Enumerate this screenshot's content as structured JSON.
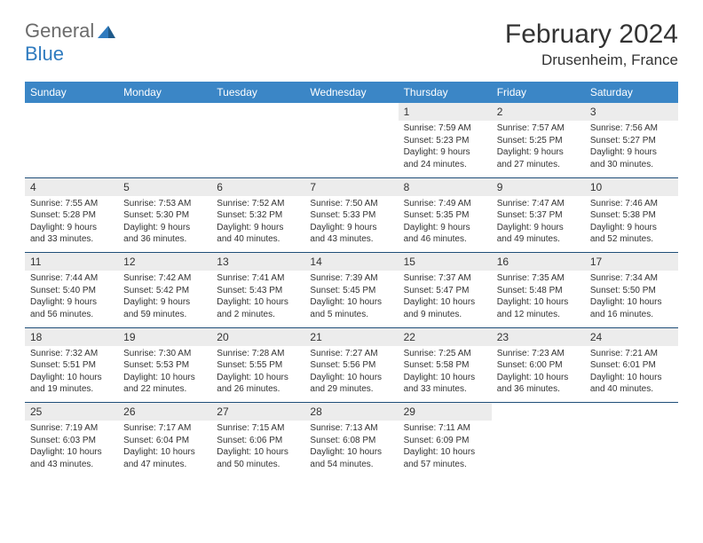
{
  "logo": {
    "part1": "General",
    "part2": "Blue"
  },
  "title": "February 2024",
  "location": "Drusenheim, France",
  "colors": {
    "header_bg": "#3b86c6",
    "date_bg": "#ececec",
    "border": "#1f4e79",
    "logo_gray": "#6b6b6b",
    "logo_blue": "#2f7bbf",
    "text": "#333333",
    "white": "#ffffff"
  },
  "typography": {
    "title_fontsize": 30,
    "location_fontsize": 17,
    "header_fontsize": 12,
    "date_fontsize": 12,
    "cell_fontsize": 10
  },
  "day_headers": [
    "Sunday",
    "Monday",
    "Tuesday",
    "Wednesday",
    "Thursday",
    "Friday",
    "Saturday"
  ],
  "weeks": [
    {
      "dates": [
        "",
        "",
        "",
        "",
        "1",
        "2",
        "3"
      ],
      "cells": [
        null,
        null,
        null,
        null,
        {
          "sunrise": "Sunrise: 7:59 AM",
          "sunset": "Sunset: 5:23 PM",
          "daylight1": "Daylight: 9 hours",
          "daylight2": "and 24 minutes."
        },
        {
          "sunrise": "Sunrise: 7:57 AM",
          "sunset": "Sunset: 5:25 PM",
          "daylight1": "Daylight: 9 hours",
          "daylight2": "and 27 minutes."
        },
        {
          "sunrise": "Sunrise: 7:56 AM",
          "sunset": "Sunset: 5:27 PM",
          "daylight1": "Daylight: 9 hours",
          "daylight2": "and 30 minutes."
        }
      ]
    },
    {
      "dates": [
        "4",
        "5",
        "6",
        "7",
        "8",
        "9",
        "10"
      ],
      "cells": [
        {
          "sunrise": "Sunrise: 7:55 AM",
          "sunset": "Sunset: 5:28 PM",
          "daylight1": "Daylight: 9 hours",
          "daylight2": "and 33 minutes."
        },
        {
          "sunrise": "Sunrise: 7:53 AM",
          "sunset": "Sunset: 5:30 PM",
          "daylight1": "Daylight: 9 hours",
          "daylight2": "and 36 minutes."
        },
        {
          "sunrise": "Sunrise: 7:52 AM",
          "sunset": "Sunset: 5:32 PM",
          "daylight1": "Daylight: 9 hours",
          "daylight2": "and 40 minutes."
        },
        {
          "sunrise": "Sunrise: 7:50 AM",
          "sunset": "Sunset: 5:33 PM",
          "daylight1": "Daylight: 9 hours",
          "daylight2": "and 43 minutes."
        },
        {
          "sunrise": "Sunrise: 7:49 AM",
          "sunset": "Sunset: 5:35 PM",
          "daylight1": "Daylight: 9 hours",
          "daylight2": "and 46 minutes."
        },
        {
          "sunrise": "Sunrise: 7:47 AM",
          "sunset": "Sunset: 5:37 PM",
          "daylight1": "Daylight: 9 hours",
          "daylight2": "and 49 minutes."
        },
        {
          "sunrise": "Sunrise: 7:46 AM",
          "sunset": "Sunset: 5:38 PM",
          "daylight1": "Daylight: 9 hours",
          "daylight2": "and 52 minutes."
        }
      ]
    },
    {
      "dates": [
        "11",
        "12",
        "13",
        "14",
        "15",
        "16",
        "17"
      ],
      "cells": [
        {
          "sunrise": "Sunrise: 7:44 AM",
          "sunset": "Sunset: 5:40 PM",
          "daylight1": "Daylight: 9 hours",
          "daylight2": "and 56 minutes."
        },
        {
          "sunrise": "Sunrise: 7:42 AM",
          "sunset": "Sunset: 5:42 PM",
          "daylight1": "Daylight: 9 hours",
          "daylight2": "and 59 minutes."
        },
        {
          "sunrise": "Sunrise: 7:41 AM",
          "sunset": "Sunset: 5:43 PM",
          "daylight1": "Daylight: 10 hours",
          "daylight2": "and 2 minutes."
        },
        {
          "sunrise": "Sunrise: 7:39 AM",
          "sunset": "Sunset: 5:45 PM",
          "daylight1": "Daylight: 10 hours",
          "daylight2": "and 5 minutes."
        },
        {
          "sunrise": "Sunrise: 7:37 AM",
          "sunset": "Sunset: 5:47 PM",
          "daylight1": "Daylight: 10 hours",
          "daylight2": "and 9 minutes."
        },
        {
          "sunrise": "Sunrise: 7:35 AM",
          "sunset": "Sunset: 5:48 PM",
          "daylight1": "Daylight: 10 hours",
          "daylight2": "and 12 minutes."
        },
        {
          "sunrise": "Sunrise: 7:34 AM",
          "sunset": "Sunset: 5:50 PM",
          "daylight1": "Daylight: 10 hours",
          "daylight2": "and 16 minutes."
        }
      ]
    },
    {
      "dates": [
        "18",
        "19",
        "20",
        "21",
        "22",
        "23",
        "24"
      ],
      "cells": [
        {
          "sunrise": "Sunrise: 7:32 AM",
          "sunset": "Sunset: 5:51 PM",
          "daylight1": "Daylight: 10 hours",
          "daylight2": "and 19 minutes."
        },
        {
          "sunrise": "Sunrise: 7:30 AM",
          "sunset": "Sunset: 5:53 PM",
          "daylight1": "Daylight: 10 hours",
          "daylight2": "and 22 minutes."
        },
        {
          "sunrise": "Sunrise: 7:28 AM",
          "sunset": "Sunset: 5:55 PM",
          "daylight1": "Daylight: 10 hours",
          "daylight2": "and 26 minutes."
        },
        {
          "sunrise": "Sunrise: 7:27 AM",
          "sunset": "Sunset: 5:56 PM",
          "daylight1": "Daylight: 10 hours",
          "daylight2": "and 29 minutes."
        },
        {
          "sunrise": "Sunrise: 7:25 AM",
          "sunset": "Sunset: 5:58 PM",
          "daylight1": "Daylight: 10 hours",
          "daylight2": "and 33 minutes."
        },
        {
          "sunrise": "Sunrise: 7:23 AM",
          "sunset": "Sunset: 6:00 PM",
          "daylight1": "Daylight: 10 hours",
          "daylight2": "and 36 minutes."
        },
        {
          "sunrise": "Sunrise: 7:21 AM",
          "sunset": "Sunset: 6:01 PM",
          "daylight1": "Daylight: 10 hours",
          "daylight2": "and 40 minutes."
        }
      ]
    },
    {
      "dates": [
        "25",
        "26",
        "27",
        "28",
        "29",
        "",
        ""
      ],
      "cells": [
        {
          "sunrise": "Sunrise: 7:19 AM",
          "sunset": "Sunset: 6:03 PM",
          "daylight1": "Daylight: 10 hours",
          "daylight2": "and 43 minutes."
        },
        {
          "sunrise": "Sunrise: 7:17 AM",
          "sunset": "Sunset: 6:04 PM",
          "daylight1": "Daylight: 10 hours",
          "daylight2": "and 47 minutes."
        },
        {
          "sunrise": "Sunrise: 7:15 AM",
          "sunset": "Sunset: 6:06 PM",
          "daylight1": "Daylight: 10 hours",
          "daylight2": "and 50 minutes."
        },
        {
          "sunrise": "Sunrise: 7:13 AM",
          "sunset": "Sunset: 6:08 PM",
          "daylight1": "Daylight: 10 hours",
          "daylight2": "and 54 minutes."
        },
        {
          "sunrise": "Sunrise: 7:11 AM",
          "sunset": "Sunset: 6:09 PM",
          "daylight1": "Daylight: 10 hours",
          "daylight2": "and 57 minutes."
        },
        null,
        null
      ]
    }
  ]
}
